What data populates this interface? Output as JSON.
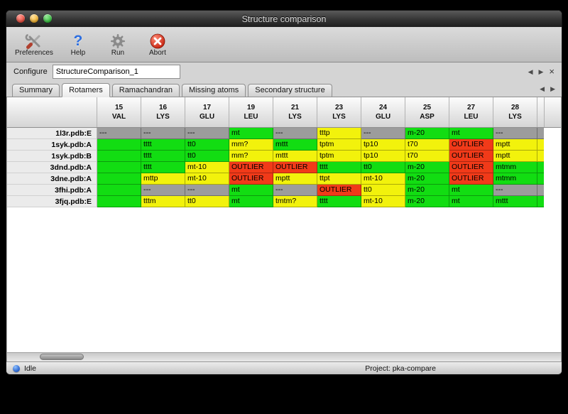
{
  "window": {
    "title": "Structure comparison"
  },
  "toolbar": {
    "buttons": [
      {
        "name": "preferences",
        "label": "Preferences",
        "icon": "preferences-icon"
      },
      {
        "name": "help",
        "label": "Help",
        "icon": "help-icon",
        "glyph": "?"
      },
      {
        "name": "run",
        "label": "Run",
        "icon": "gear-icon"
      },
      {
        "name": "abort",
        "label": "Abort",
        "icon": "abort-icon"
      }
    ]
  },
  "configure": {
    "label": "Configure",
    "value": "StructureComparison_1",
    "nav_left": "◀",
    "nav_right": "▶",
    "close": "×"
  },
  "tabs": {
    "items": [
      {
        "label": "Summary",
        "selected": false
      },
      {
        "label": "Rotamers",
        "selected": true
      },
      {
        "label": "Ramachandran",
        "selected": false
      },
      {
        "label": "Missing atoms",
        "selected": false
      },
      {
        "label": "Secondary structure",
        "selected": false
      }
    ],
    "nav_left": "◀",
    "nav_right": "▶"
  },
  "colors": {
    "green": "#12dd12",
    "yellow": "#f2f20c",
    "red": "#f13a19",
    "gray": "#9c9c9c"
  },
  "rotamer_table": {
    "columns": [
      {
        "num": "15",
        "res": "VAL"
      },
      {
        "num": "16",
        "res": "LYS"
      },
      {
        "num": "17",
        "res": "GLU"
      },
      {
        "num": "19",
        "res": "LEU"
      },
      {
        "num": "21",
        "res": "LYS"
      },
      {
        "num": "23",
        "res": "LYS"
      },
      {
        "num": "24",
        "res": "GLU"
      },
      {
        "num": "25",
        "res": "ASP"
      },
      {
        "num": "27",
        "res": "LEU"
      },
      {
        "num": "28",
        "res": "LYS"
      }
    ],
    "rows": [
      {
        "name": "1l3r.pdb:E",
        "edge": "gray",
        "cells": [
          {
            "text": "---",
            "status": "gray"
          },
          {
            "text": "---",
            "status": "gray"
          },
          {
            "text": "---",
            "status": "gray"
          },
          {
            "text": "mt",
            "status": "green"
          },
          {
            "text": "---",
            "status": "gray"
          },
          {
            "text": "tttp",
            "status": "yellow"
          },
          {
            "text": "---",
            "status": "gray"
          },
          {
            "text": "m-20",
            "status": "green"
          },
          {
            "text": "mt",
            "status": "green"
          },
          {
            "text": "---",
            "status": "gray"
          }
        ]
      },
      {
        "name": "1syk.pdb:A",
        "edge": "yellow",
        "cells": [
          {
            "text": "",
            "status": "green"
          },
          {
            "text": "tttt",
            "status": "green"
          },
          {
            "text": "tt0",
            "status": "green"
          },
          {
            "text": "mm?",
            "status": "yellow"
          },
          {
            "text": "mttt",
            "status": "green"
          },
          {
            "text": "tptm",
            "status": "yellow"
          },
          {
            "text": "tp10",
            "status": "yellow"
          },
          {
            "text": "t70",
            "status": "yellow"
          },
          {
            "text": "OUTLIER",
            "status": "red"
          },
          {
            "text": "mptt",
            "status": "yellow"
          }
        ]
      },
      {
        "name": "1syk.pdb:B",
        "edge": "yellow",
        "cells": [
          {
            "text": "",
            "status": "green"
          },
          {
            "text": "tttt",
            "status": "green"
          },
          {
            "text": "tt0",
            "status": "green"
          },
          {
            "text": "mm?",
            "status": "yellow"
          },
          {
            "text": "mttt",
            "status": "yellow"
          },
          {
            "text": "tptm",
            "status": "yellow"
          },
          {
            "text": "tp10",
            "status": "yellow"
          },
          {
            "text": "t70",
            "status": "yellow"
          },
          {
            "text": "OUTLIER",
            "status": "red"
          },
          {
            "text": "mptt",
            "status": "yellow"
          }
        ]
      },
      {
        "name": "3dnd.pdb:A",
        "edge": "green",
        "cells": [
          {
            "text": "",
            "status": "green"
          },
          {
            "text": "tttt",
            "status": "green"
          },
          {
            "text": "mt-10",
            "status": "yellow"
          },
          {
            "text": "OUTLIER",
            "status": "red"
          },
          {
            "text": "OUTLIER",
            "status": "red"
          },
          {
            "text": "tttt",
            "status": "green"
          },
          {
            "text": "tt0",
            "status": "green"
          },
          {
            "text": "m-20",
            "status": "green"
          },
          {
            "text": "OUTLIER",
            "status": "red"
          },
          {
            "text": "mtmm",
            "status": "green"
          }
        ]
      },
      {
        "name": "3dne.pdb:A",
        "edge": "green",
        "cells": [
          {
            "text": "",
            "status": "green"
          },
          {
            "text": "mttp",
            "status": "yellow"
          },
          {
            "text": "mt-10",
            "status": "yellow"
          },
          {
            "text": "OUTLIER",
            "status": "red"
          },
          {
            "text": "mptt",
            "status": "yellow"
          },
          {
            "text": "ttpt",
            "status": "yellow"
          },
          {
            "text": "mt-10",
            "status": "yellow"
          },
          {
            "text": "m-20",
            "status": "green"
          },
          {
            "text": "OUTLIER",
            "status": "red"
          },
          {
            "text": "mtmm",
            "status": "green"
          }
        ]
      },
      {
        "name": "3fhi.pdb:A",
        "edge": "gray",
        "cells": [
          {
            "text": "",
            "status": "green"
          },
          {
            "text": "---",
            "status": "gray"
          },
          {
            "text": "---",
            "status": "gray"
          },
          {
            "text": "mt",
            "status": "green"
          },
          {
            "text": "---",
            "status": "gray"
          },
          {
            "text": "OUTLIER",
            "status": "red"
          },
          {
            "text": "tt0",
            "status": "yellow"
          },
          {
            "text": "m-20",
            "status": "green"
          },
          {
            "text": "mt",
            "status": "green"
          },
          {
            "text": "---",
            "status": "gray"
          }
        ]
      },
      {
        "name": "3fjq.pdb:E",
        "edge": "green",
        "cells": [
          {
            "text": "",
            "status": "green"
          },
          {
            "text": "tttm",
            "status": "yellow"
          },
          {
            "text": "tt0",
            "status": "yellow"
          },
          {
            "text": "mt",
            "status": "green"
          },
          {
            "text": "tmtm?",
            "status": "yellow"
          },
          {
            "text": "tttt",
            "status": "green"
          },
          {
            "text": "mt-10",
            "status": "yellow"
          },
          {
            "text": "m-20",
            "status": "green"
          },
          {
            "text": "mt",
            "status": "green"
          },
          {
            "text": "mttt",
            "status": "green"
          }
        ]
      }
    ]
  },
  "status_bar": {
    "status": "Idle",
    "project": "Project: pka-compare"
  }
}
